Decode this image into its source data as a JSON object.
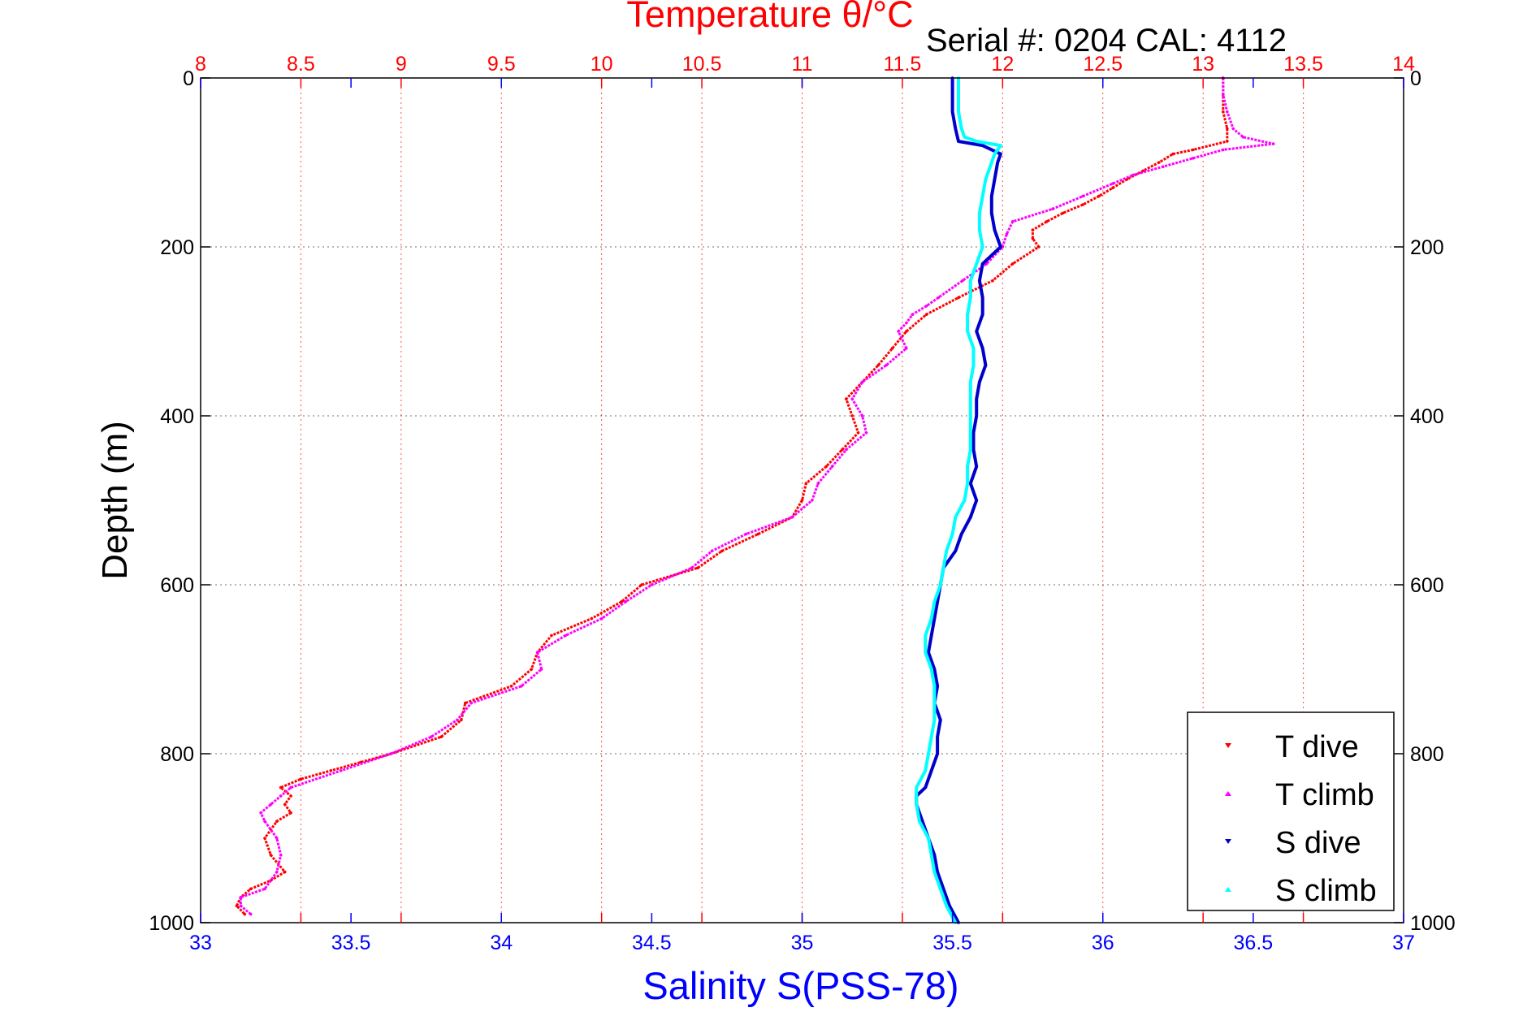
{
  "chart_data": {
    "type": "scatter",
    "title": "Temperature θ/°C",
    "subtitle": "Serial #: 0204  CAL: 4112",
    "xlabel": "Salinity S(PSS-78)",
    "ylabel": "Depth (m)",
    "x_top": {
      "label": "Temperature θ/°C",
      "range": [
        8,
        14
      ],
      "ticks": [
        "8",
        "8.5",
        "9",
        "9.5",
        "10",
        "10.5",
        "11",
        "11.5",
        "12",
        "12.5",
        "13",
        "13.5",
        "14"
      ],
      "color": "#ff0000"
    },
    "x_bottom": {
      "label": "Salinity S(PSS-78)",
      "range": [
        33,
        37
      ],
      "ticks": [
        "33",
        "33.5",
        "34",
        "34.5",
        "35",
        "35.5",
        "36",
        "36.5",
        "37"
      ],
      "color": "#0000ff"
    },
    "y": {
      "label": "Depth (m)",
      "range": [
        0,
        1000
      ],
      "reversed": true,
      "ticks": [
        "0",
        "200",
        "400",
        "600",
        "800",
        "1000"
      ]
    },
    "grid": true,
    "legend_position": "bottom-right",
    "series": [
      {
        "name": "T dive",
        "axis": "temperature",
        "color": "#ff0000",
        "depth": [
          0,
          20,
          40,
          60,
          75,
          85,
          90,
          100,
          110,
          120,
          130,
          140,
          150,
          160,
          170,
          180,
          190,
          200,
          220,
          240,
          260,
          280,
          300,
          320,
          340,
          360,
          380,
          400,
          420,
          440,
          460,
          480,
          500,
          520,
          540,
          560,
          580,
          600,
          620,
          640,
          660,
          680,
          700,
          720,
          740,
          760,
          780,
          800,
          810,
          820,
          830,
          840,
          850,
          860,
          870,
          880,
          900,
          920,
          940,
          950,
          960,
          970,
          980,
          990
        ],
        "values": [
          13.1,
          13.1,
          13.1,
          13.12,
          13.12,
          12.95,
          12.85,
          12.78,
          12.7,
          12.62,
          12.55,
          12.48,
          12.4,
          12.3,
          12.22,
          12.15,
          12.15,
          12.18,
          12.05,
          11.95,
          11.78,
          11.62,
          11.52,
          11.45,
          11.38,
          11.3,
          11.22,
          11.25,
          11.28,
          11.2,
          11.12,
          11.02,
          11.0,
          10.95,
          10.78,
          10.6,
          10.48,
          10.2,
          10.1,
          9.95,
          9.75,
          9.68,
          9.65,
          9.55,
          9.32,
          9.3,
          9.2,
          8.95,
          8.8,
          8.65,
          8.5,
          8.4,
          8.45,
          8.42,
          8.45,
          8.38,
          8.32,
          8.35,
          8.42,
          8.35,
          8.25,
          8.2,
          8.18,
          8.22
        ]
      },
      {
        "name": "T climb",
        "axis": "temperature",
        "color": "#ff00ff",
        "depth": [
          0,
          20,
          40,
          60,
          70,
          78,
          85,
          95,
          105,
          115,
          125,
          140,
          155,
          170,
          185,
          200,
          220,
          240,
          260,
          270,
          280,
          290,
          300,
          320,
          340,
          360,
          380,
          400,
          420,
          440,
          460,
          480,
          500,
          520,
          540,
          560,
          580,
          600,
          620,
          640,
          660,
          680,
          700,
          720,
          740,
          760,
          780,
          800,
          820,
          840,
          850,
          860,
          870,
          880,
          900,
          920,
          940,
          960,
          970,
          980,
          990
        ],
        "values": [
          13.1,
          13.1,
          13.12,
          13.15,
          13.2,
          13.35,
          13.1,
          12.95,
          12.8,
          12.65,
          12.55,
          12.4,
          12.25,
          12.05,
          12.02,
          12.0,
          11.92,
          11.8,
          11.68,
          11.62,
          11.55,
          11.52,
          11.48,
          11.52,
          11.42,
          11.3,
          11.25,
          11.3,
          11.32,
          11.22,
          11.15,
          11.08,
          11.05,
          10.95,
          10.72,
          10.55,
          10.45,
          10.25,
          10.12,
          10.0,
          9.82,
          9.68,
          9.7,
          9.6,
          9.35,
          9.28,
          9.15,
          8.95,
          8.7,
          8.45,
          8.4,
          8.35,
          8.3,
          8.32,
          8.38,
          8.4,
          8.38,
          8.32,
          8.2,
          8.2,
          8.25
        ]
      },
      {
        "name": "S dive",
        "axis": "salinity",
        "color": "#0000cc",
        "depth": [
          0,
          20,
          40,
          60,
          75,
          80,
          90,
          100,
          120,
          140,
          160,
          180,
          200,
          220,
          240,
          260,
          280,
          300,
          320,
          340,
          360,
          380,
          400,
          420,
          440,
          460,
          480,
          500,
          520,
          540,
          560,
          580,
          600,
          620,
          640,
          660,
          680,
          700,
          720,
          740,
          760,
          780,
          800,
          820,
          840,
          850,
          860,
          880,
          900,
          920,
          940,
          960,
          980,
          1000
        ],
        "values": [
          35.5,
          35.5,
          35.5,
          35.51,
          35.52,
          35.6,
          35.66,
          35.65,
          35.64,
          35.63,
          35.63,
          35.64,
          35.66,
          35.6,
          35.59,
          35.6,
          35.6,
          35.58,
          35.6,
          35.61,
          35.59,
          35.58,
          35.58,
          35.57,
          35.57,
          35.58,
          35.56,
          35.58,
          35.56,
          35.53,
          35.51,
          35.47,
          35.46,
          35.45,
          35.44,
          35.43,
          35.42,
          35.44,
          35.45,
          35.44,
          35.46,
          35.45,
          35.45,
          35.43,
          35.41,
          35.38,
          35.38,
          35.4,
          35.42,
          35.44,
          35.45,
          35.47,
          35.49,
          35.52
        ]
      },
      {
        "name": "S climb",
        "axis": "salinity",
        "color": "#00ffff",
        "depth": [
          0,
          20,
          40,
          60,
          70,
          75,
          80,
          90,
          100,
          120,
          140,
          160,
          180,
          200,
          220,
          240,
          260,
          280,
          300,
          320,
          340,
          360,
          380,
          400,
          420,
          440,
          460,
          480,
          500,
          520,
          540,
          560,
          580,
          600,
          620,
          640,
          660,
          680,
          700,
          720,
          740,
          760,
          780,
          800,
          820,
          840,
          860,
          880,
          900,
          920,
          940,
          960,
          980,
          1000
        ],
        "values": [
          35.52,
          35.52,
          35.52,
          35.53,
          35.54,
          35.58,
          35.66,
          35.64,
          35.63,
          35.61,
          35.6,
          35.59,
          35.59,
          35.6,
          35.58,
          35.56,
          35.56,
          35.55,
          35.55,
          35.57,
          35.57,
          35.56,
          35.56,
          35.56,
          35.56,
          35.56,
          35.55,
          35.55,
          35.54,
          35.51,
          35.5,
          35.48,
          35.47,
          35.46,
          35.44,
          35.43,
          35.41,
          35.41,
          35.43,
          35.44,
          35.44,
          35.44,
          35.43,
          35.42,
          35.41,
          35.38,
          35.38,
          35.39,
          35.42,
          35.43,
          35.44,
          35.46,
          35.48,
          35.51
        ]
      }
    ]
  }
}
